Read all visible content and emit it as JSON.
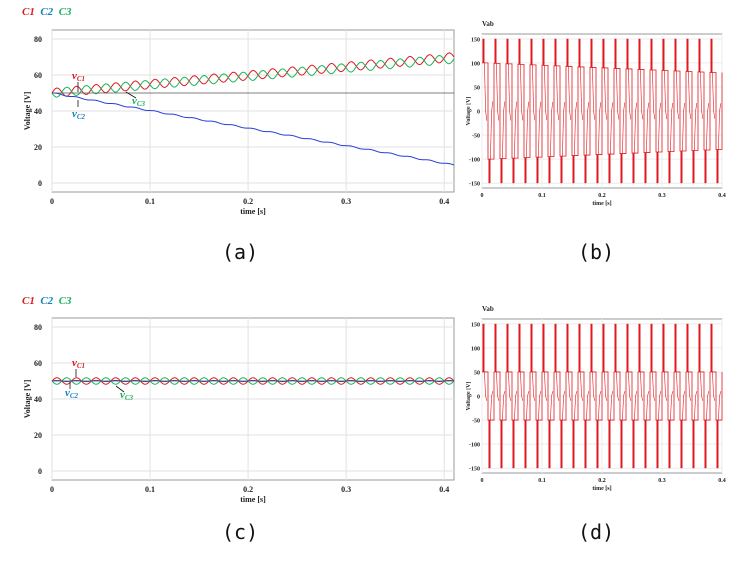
{
  "captions": {
    "a": "(a)",
    "b": "(b)",
    "c": "(c)",
    "d": "(d)"
  },
  "legend": {
    "items": [
      {
        "label": "C1",
        "color": "#e0191e"
      },
      {
        "label": "C2",
        "color": "#1a7fc1"
      },
      {
        "label": "C3",
        "color": "#1bb35a"
      }
    ]
  },
  "chart_data": [
    {
      "id": "a",
      "type": "line",
      "ylabel": "Voltage [V]",
      "xlabel": "time [s]",
      "x_ticks": [
        "0",
        "0.1",
        "0.2",
        "0.3",
        "0.4"
      ],
      "y_ticks": [
        "0",
        "20",
        "40",
        "60",
        "80"
      ],
      "xlim": [
        0,
        0.41
      ],
      "ylim": [
        -5,
        85
      ],
      "grid": true,
      "annotations": [
        {
          "text": "vC1",
          "color": "#e0191e"
        },
        {
          "text": "vC2",
          "color": "#1a7fc1"
        },
        {
          "text": "vC3",
          "color": "#1bb35a"
        }
      ],
      "series": [
        {
          "name": "C1",
          "color": "#e0191e",
          "start": 50,
          "end": 70,
          "ripple": 2.5
        },
        {
          "name": "C2",
          "color": "#2a3ed8",
          "start": 50,
          "end": 10,
          "ripple": 0.3
        },
        {
          "name": "C3",
          "color": "#1bb35a",
          "start": 50,
          "end": 69,
          "ripple": 2.5
        },
        {
          "name": "",
          "color": "#555555",
          "start": 50,
          "end": 50,
          "ripple": 0
        }
      ]
    },
    {
      "id": "b",
      "type": "line",
      "title": "Vab",
      "ylabel": "Voltage [V]",
      "xlabel": "time [s]",
      "x_ticks": [
        "0",
        "0.1",
        "0.2",
        "0.3",
        "0.4"
      ],
      "y_ticks": [
        "-150",
        "-100",
        "-50",
        "0",
        "50",
        "100",
        "150"
      ],
      "xlim": [
        0,
        0.4
      ],
      "ylim": [
        -160,
        160
      ],
      "pulses": 20,
      "levels": {
        "high": 150,
        "mid_start": 100,
        "mid_end": 80,
        "low": -150
      }
    },
    {
      "id": "c",
      "type": "line",
      "ylabel": "Voltage [V]",
      "xlabel": "time [s]",
      "x_ticks": [
        "0",
        "0.1",
        "0.2",
        "0.3",
        "0.4"
      ],
      "y_ticks": [
        "0",
        "20",
        "40",
        "60",
        "80"
      ],
      "xlim": [
        0,
        0.41
      ],
      "ylim": [
        -5,
        85
      ],
      "grid": true,
      "annotations": [
        {
          "text": "vC1",
          "color": "#e0191e"
        },
        {
          "text": "vC2",
          "color": "#1a7fc1"
        },
        {
          "text": "vC3",
          "color": "#1bb35a"
        }
      ],
      "series": [
        {
          "name": "C1",
          "color": "#e0191e",
          "start": 50,
          "end": 50,
          "ripple": 1.8
        },
        {
          "name": "C2",
          "color": "#2a3ed8",
          "start": 50,
          "end": 50,
          "ripple": 0.3
        },
        {
          "name": "C3",
          "color": "#1bb35a",
          "start": 50,
          "end": 50,
          "ripple": 1.8
        },
        {
          "name": "",
          "color": "#555555",
          "start": 50,
          "end": 50,
          "ripple": 0
        }
      ]
    },
    {
      "id": "d",
      "type": "line",
      "title": "Vab",
      "ylabel": "Voltage [V]",
      "xlabel": "time [s]",
      "x_ticks": [
        "0",
        "0.1",
        "0.2",
        "0.3",
        "0.4"
      ],
      "y_ticks": [
        "-150",
        "-100",
        "-50",
        "0",
        "50",
        "100",
        "150"
      ],
      "xlim": [
        0,
        0.4
      ],
      "ylim": [
        -160,
        160
      ],
      "pulses": 20,
      "levels": {
        "high": 150,
        "mid_start": 50,
        "mid_end": 50,
        "low": -150
      }
    }
  ]
}
